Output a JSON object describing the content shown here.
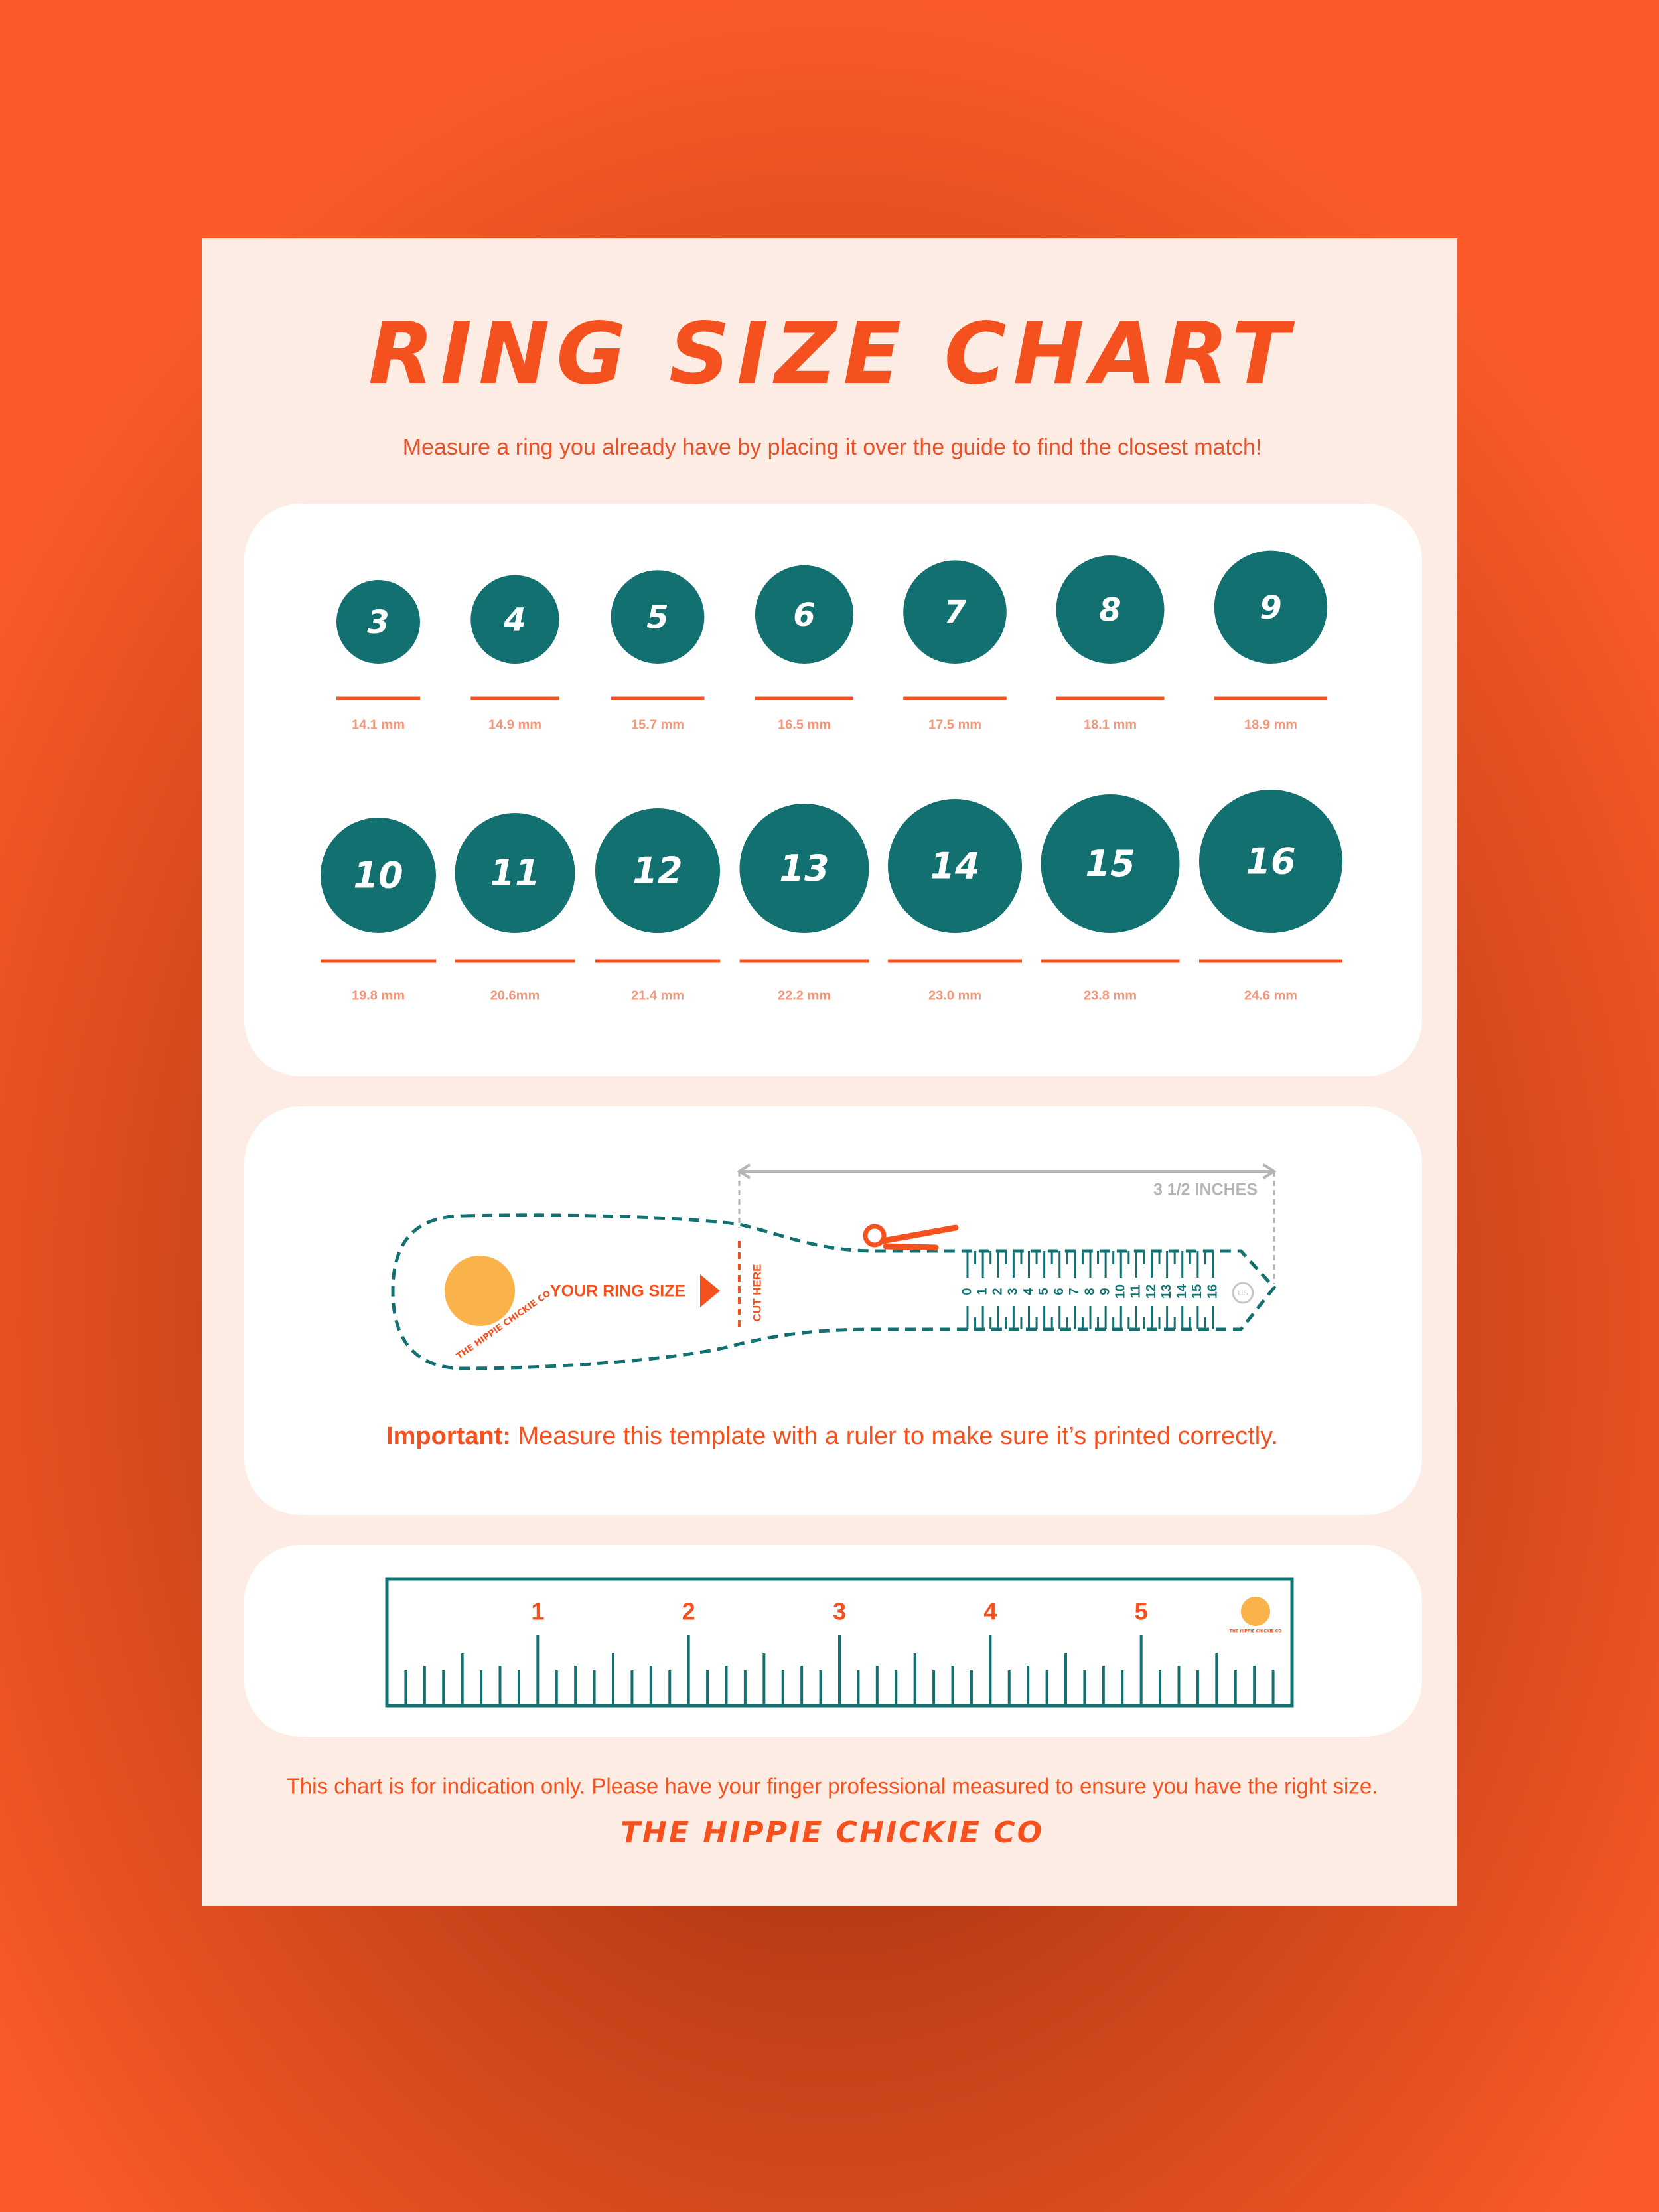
{
  "title": "RING SIZE CHART",
  "subtitle": "Measure a ring you already have by placing it over the guide to find the closest match!",
  "sizes": [
    {
      "size": 3,
      "mm": "14.1 mm"
    },
    {
      "size": 4,
      "mm": "14.9 mm"
    },
    {
      "size": 5,
      "mm": "15.7 mm"
    },
    {
      "size": 6,
      "mm": "16.5 mm"
    },
    {
      "size": 7,
      "mm": "17.5 mm"
    },
    {
      "size": 8,
      "mm": "18.1 mm"
    },
    {
      "size": 9,
      "mm": "18.9 mm"
    },
    {
      "size": 10,
      "mm": "19.8 mm"
    },
    {
      "size": 11,
      "mm": "20.6mm"
    },
    {
      "size": 12,
      "mm": "21.4 mm"
    },
    {
      "size": 13,
      "mm": "22.2 mm"
    },
    {
      "size": 14,
      "mm": "23.0 mm"
    },
    {
      "size": 15,
      "mm": "23.8 mm"
    },
    {
      "size": 16,
      "mm": "24.6 mm"
    }
  ],
  "sizer": {
    "length": "3 1/2 INCHES",
    "logo_text": "THE HIPPIE CHICKIE CO",
    "your_ring_size": "YOUR RING SIZE",
    "cut_here": "CUT HERE",
    "scale": [
      0,
      1,
      2,
      3,
      4,
      5,
      6,
      7,
      8,
      9,
      10,
      11,
      12,
      13,
      14,
      15,
      16
    ],
    "end_label": "US"
  },
  "important": {
    "label": "Important:",
    "text": " Measure this template with a ruler to make sure it’s printed correctly."
  },
  "ruler": {
    "numbers": [
      1,
      2,
      3,
      4,
      5
    ],
    "logo_text": "THE HIPPIE CHICKIE CO"
  },
  "footer": {
    "note": "This chart is for indication only. Please have your finger professional measured to ensure you have the right size.",
    "brand": "THE HIPPIE CHICKIE CO"
  }
}
